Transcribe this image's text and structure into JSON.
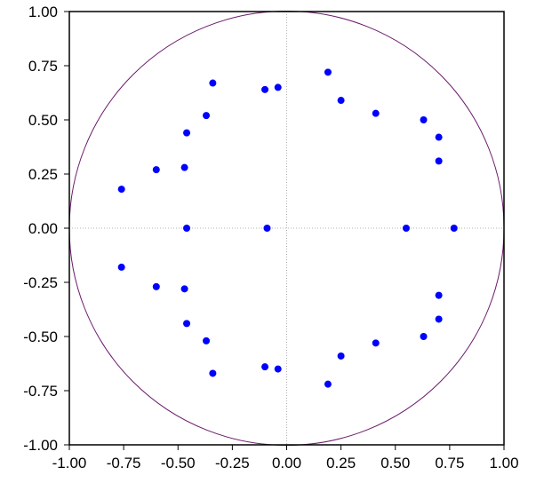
{
  "chart_data": {
    "type": "scatter",
    "title": "",
    "xlabel": "",
    "ylabel": "",
    "xlim": [
      -1.0,
      1.0
    ],
    "ylim": [
      -1.0,
      1.0
    ],
    "x_ticks": [
      "-1.00",
      "-0.75",
      "-0.50",
      "-0.25",
      "0.00",
      "0.25",
      "0.50",
      "0.75",
      "1.00"
    ],
    "y_ticks": [
      "1.00",
      "0.75",
      "0.50",
      "0.25",
      "0.00",
      "-0.25",
      "-0.50",
      "-0.75",
      "-1.00"
    ],
    "grid": false,
    "reference_lines": "x=0 and y=0 (dotted gray)",
    "unit_circle": true,
    "colors": {
      "points": "#0000ff",
      "circle": "#6a1a6a",
      "zero_lines": "#b0b0b0",
      "frame": "#000000"
    },
    "points": [
      {
        "x": 0.19,
        "y": 0.72
      },
      {
        "x": 0.25,
        "y": 0.59
      },
      {
        "x": 0.41,
        "y": 0.53
      },
      {
        "x": 0.63,
        "y": 0.5
      },
      {
        "x": 0.7,
        "y": 0.42
      },
      {
        "x": 0.7,
        "y": 0.31
      },
      {
        "x": -0.34,
        "y": 0.67
      },
      {
        "x": -0.1,
        "y": 0.64
      },
      {
        "x": -0.04,
        "y": 0.65
      },
      {
        "x": -0.37,
        "y": 0.52
      },
      {
        "x": -0.46,
        "y": 0.44
      },
      {
        "x": -0.47,
        "y": 0.28
      },
      {
        "x": -0.6,
        "y": 0.27
      },
      {
        "x": -0.76,
        "y": 0.18
      },
      {
        "x": -0.46,
        "y": 0.0
      },
      {
        "x": -0.09,
        "y": 0.0
      },
      {
        "x": 0.55,
        "y": 0.0
      },
      {
        "x": 0.77,
        "y": 0.0
      },
      {
        "x": -0.76,
        "y": -0.18
      },
      {
        "x": -0.6,
        "y": -0.27
      },
      {
        "x": -0.47,
        "y": -0.28
      },
      {
        "x": -0.46,
        "y": -0.44
      },
      {
        "x": -0.37,
        "y": -0.52
      },
      {
        "x": -0.34,
        "y": -0.67
      },
      {
        "x": -0.1,
        "y": -0.64
      },
      {
        "x": -0.04,
        "y": -0.65
      },
      {
        "x": 0.19,
        "y": -0.72
      },
      {
        "x": 0.25,
        "y": -0.59
      },
      {
        "x": 0.41,
        "y": -0.53
      },
      {
        "x": 0.63,
        "y": -0.5
      },
      {
        "x": 0.7,
        "y": -0.42
      },
      {
        "x": 0.7,
        "y": -0.31
      }
    ]
  }
}
